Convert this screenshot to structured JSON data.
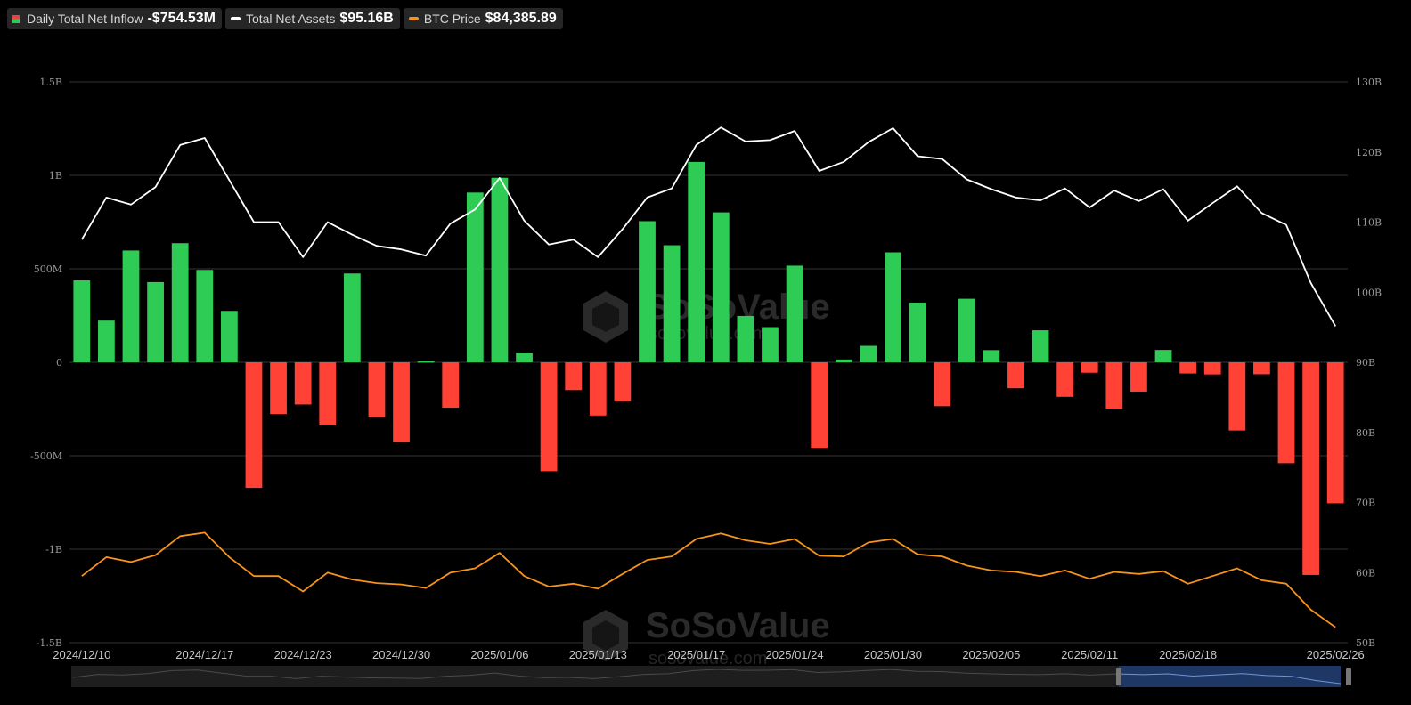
{
  "legend": {
    "inflow": {
      "label": "Daily Total Net Inflow",
      "value": "-$754.53M"
    },
    "assets": {
      "label": "Total Net Assets",
      "value": "$95.16B"
    },
    "btc": {
      "label": "BTC Price",
      "value": "$84,385.89"
    }
  },
  "watermark": {
    "brand": "SoSoValue",
    "site": "sosovalue.com"
  },
  "colors": {
    "positive": "#2ecc55",
    "negative": "#ff4136",
    "assets_line": "#ffffff",
    "btc_line": "#f7931a",
    "grid": "#333333",
    "background": "#000000"
  },
  "chart_data": {
    "type": "bar",
    "dates": [
      "2024/12/10",
      "2024/12/11",
      "2024/12/12",
      "2024/12/13",
      "2024/12/16",
      "2024/12/17",
      "2024/12/18",
      "2024/12/19",
      "2024/12/20",
      "2024/12/23",
      "2024/12/24",
      "2024/12/26",
      "2024/12/27",
      "2024/12/30",
      "2024/12/31",
      "2025/01/02",
      "2025/01/03",
      "2025/01/06",
      "2025/01/07",
      "2025/01/08",
      "2025/01/10",
      "2025/01/13",
      "2025/01/14",
      "2025/01/15",
      "2025/01/16",
      "2025/01/17",
      "2025/01/21",
      "2025/01/22",
      "2025/01/23",
      "2025/01/24",
      "2025/01/27",
      "2025/01/28",
      "2025/01/29",
      "2025/01/30",
      "2025/01/31",
      "2025/02/03",
      "2025/02/04",
      "2025/02/05",
      "2025/02/06",
      "2025/02/07",
      "2025/02/10",
      "2025/02/11",
      "2025/02/12",
      "2025/02/13",
      "2025/02/14",
      "2025/02/18",
      "2025/02/19",
      "2025/02/20",
      "2025/02/21",
      "2025/02/24",
      "2025/02/25",
      "2025/02/26"
    ],
    "x_tick_labels": [
      "2024/12/10",
      "2024/12/17",
      "2024/12/23",
      "2024/12/30",
      "2025/01/06",
      "2025/01/13",
      "2025/01/17",
      "2025/01/24",
      "2025/01/30",
      "2025/02/05",
      "2025/02/11",
      "2025/02/18",
      "2025/02/26"
    ],
    "series": [
      {
        "name": "Daily Total Net Inflow",
        "axis": "left",
        "unit": "USD millions",
        "values": [
          438,
          223,
          598,
          429,
          637,
          494,
          275,
          -672,
          -277,
          -226,
          -338,
          475,
          -294,
          -426,
          5,
          -243,
          908,
          987,
          51,
          -583,
          -149,
          -285,
          -209,
          755,
          626,
          1072,
          802,
          248,
          188,
          517,
          -458,
          15,
          88,
          588,
          319,
          -235,
          340,
          65,
          -139,
          171,
          -185,
          -56,
          -251,
          -157,
          66,
          -60,
          -65,
          -365,
          -64,
          -540,
          -1138,
          -754.53
        ]
      },
      {
        "name": "Total Net Assets",
        "axis": "right",
        "unit": "USD billions",
        "values": [
          107.5,
          113.5,
          112.5,
          115,
          121,
          122,
          116,
          110,
          110,
          105,
          110,
          108.2,
          106.6,
          106.1,
          105.2,
          109.8,
          111.8,
          116.3,
          110.2,
          106.8,
          107.5,
          105,
          109,
          113.5,
          114.8,
          121,
          123.5,
          121.5,
          121.7,
          123,
          117.3,
          118.6,
          121.4,
          123.4,
          119.4,
          119,
          116.1,
          114.7,
          113.5,
          113.1,
          114.8,
          112.1,
          114.5,
          113,
          114.7,
          110.2,
          112.7,
          115.1,
          111.3,
          109.6,
          101.3,
          95.16
        ]
      },
      {
        "name": "BTC Price",
        "axis": "right",
        "unit": "index on asset axis",
        "values": [
          59.5,
          62.2,
          61.5,
          62.5,
          65.2,
          65.7,
          62.2,
          59.5,
          59.5,
          57.3,
          60,
          59,
          58.5,
          58.3,
          57.8,
          60,
          60.6,
          62.8,
          59.5,
          58,
          58.4,
          57.7,
          59.8,
          61.8,
          62.3,
          64.8,
          65.6,
          64.6,
          64.1,
          64.8,
          62.4,
          62.3,
          64.3,
          64.8,
          62.6,
          62.3,
          61,
          60.3,
          60.1,
          59.5,
          60.3,
          59.1,
          60.1,
          59.8,
          60.2,
          58.4,
          59.5,
          60.6,
          58.9,
          58.4,
          54.7,
          52.2
        ]
      }
    ],
    "y_left": {
      "min": -1500,
      "max": 1500,
      "ticks": [
        1500,
        1000,
        500,
        0,
        -500,
        -1000,
        -1500
      ],
      "tick_labels": [
        "1.5B",
        "1B",
        "500M",
        "0",
        "-500M",
        "-1B",
        "-1.5B"
      ]
    },
    "y_right": {
      "min": 50,
      "max": 130,
      "ticks": [
        130,
        120,
        110,
        100,
        90,
        80,
        70,
        60,
        50
      ],
      "tick_labels": [
        "130B",
        "120B",
        "110B",
        "100B",
        "90B",
        "80B",
        "70B",
        "60B",
        "50B"
      ]
    },
    "grid": true
  }
}
